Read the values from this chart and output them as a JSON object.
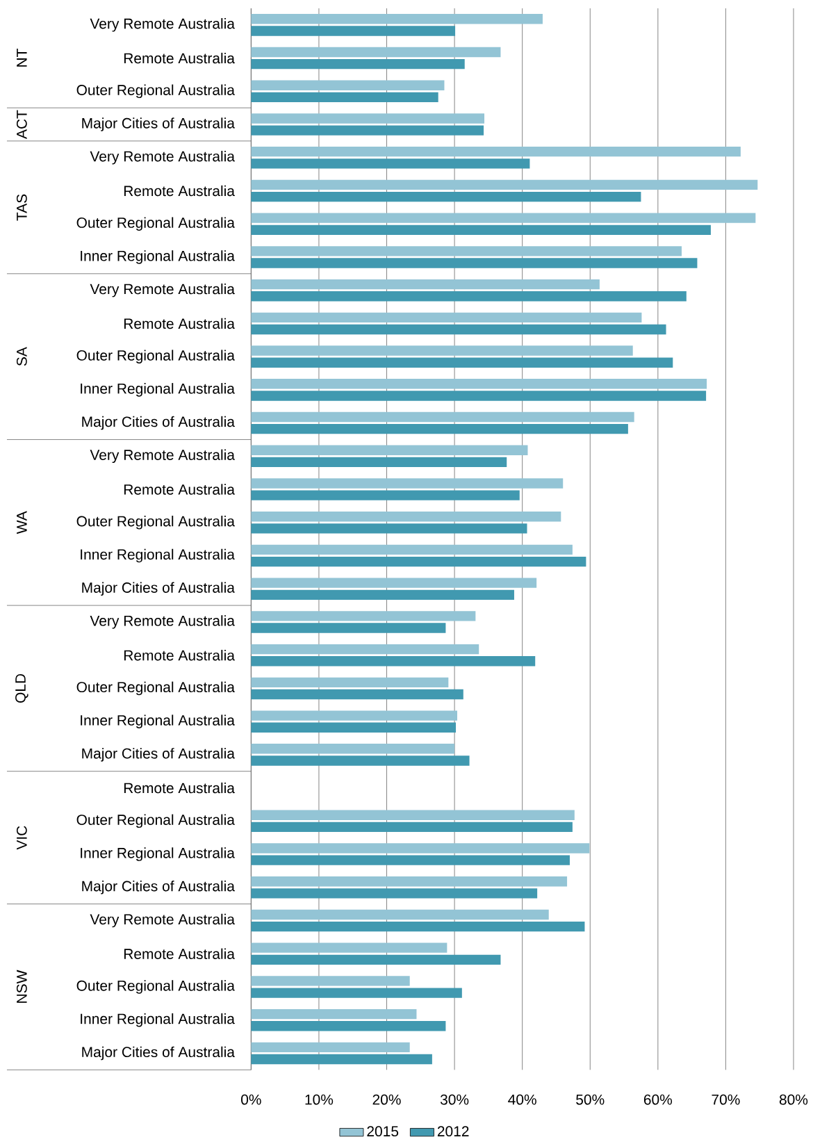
{
  "chart_data": {
    "type": "bar",
    "orientation": "horizontal",
    "categories": [
      "Very Remote Australia",
      "Remote Australia",
      "Outer Regional Australia",
      "Major Cities of Australia",
      "Very Remote Australia",
      "Remote Australia",
      "Outer Regional Australia",
      "Inner Regional Australia",
      "Very Remote Australia",
      "Remote Australia",
      "Outer Regional Australia",
      "Inner Regional Australia",
      "Major Cities of Australia",
      "Very Remote Australia",
      "Remote Australia",
      "Outer Regional Australia",
      "Inner Regional Australia",
      "Major Cities of Australia",
      "Very Remote Australia",
      "Remote Australia",
      "Outer Regional Australia",
      "Inner Regional Australia",
      "Major Cities of Australia",
      "Remote Australia",
      "Outer Regional Australia",
      "Inner Regional Australia",
      "Major Cities of Australia",
      "Very Remote Australia",
      "Remote Australia",
      "Outer Regional Australia",
      "Inner Regional Australia",
      "Major Cities of Australia"
    ],
    "series": [
      {
        "name": "2015",
        "color": "#93c4d5",
        "values": [
          43.0,
          36.8,
          28.5,
          34.4,
          72.2,
          74.7,
          74.4,
          63.5,
          51.4,
          57.6,
          56.3,
          67.2,
          56.5,
          40.8,
          46.0,
          45.7,
          47.4,
          42.1,
          33.1,
          33.6,
          29.1,
          30.4,
          30.0,
          null,
          47.7,
          49.9,
          46.6,
          43.9,
          28.9,
          23.4,
          24.4,
          23.4
        ]
      },
      {
        "name": "2012",
        "color": "#4199b0",
        "values": [
          30.1,
          31.5,
          27.6,
          34.3,
          41.1,
          57.5,
          67.8,
          65.8,
          64.2,
          61.2,
          62.2,
          67.1,
          55.6,
          37.7,
          39.6,
          40.7,
          49.4,
          38.8,
          28.7,
          41.9,
          31.3,
          30.2,
          32.2,
          null,
          47.4,
          47.0,
          42.2,
          49.2,
          36.8,
          31.1,
          28.7,
          26.7
        ]
      }
    ],
    "xlim": [
      0,
      80
    ],
    "xticks": [
      {
        "value": 0,
        "label": "0%"
      },
      {
        "value": 10,
        "label": "10%"
      },
      {
        "value": 20,
        "label": "20%"
      },
      {
        "value": 30,
        "label": "30%"
      },
      {
        "value": 40,
        "label": "40%"
      },
      {
        "value": 50,
        "label": "50%"
      },
      {
        "value": 60,
        "label": "60%"
      },
      {
        "value": 70,
        "label": "70%"
      },
      {
        "value": 80,
        "label": "80%"
      }
    ],
    "grid": "x",
    "legend": "bottom",
    "annotations": [
      "NT",
      "ACT",
      "TAS",
      "SA",
      "WA",
      "QLD",
      "VIC",
      "NSW"
    ]
  }
}
